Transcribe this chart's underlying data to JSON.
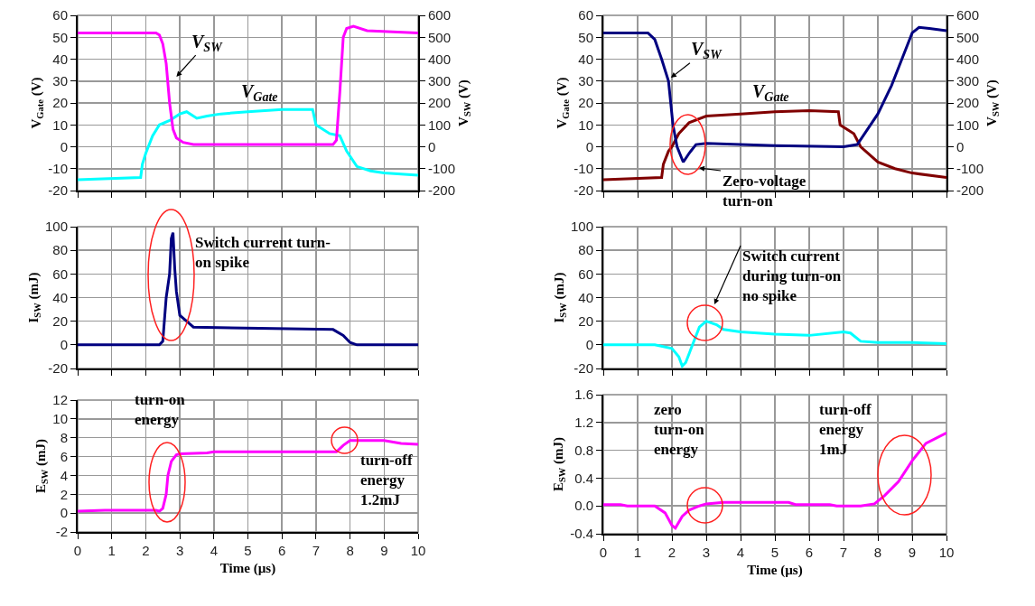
{
  "chart_data": [
    {
      "type": "line",
      "ylabel": "V$_{Gate}$ (V)",
      "y2label": "V$_{SW}$ (V)",
      "xlim": [
        0,
        10
      ],
      "xticks": [
        0,
        1,
        2,
        3,
        4,
        5,
        6,
        7,
        8,
        9,
        10
      ],
      "ylim": [
        -20,
        60
      ],
      "yticks": [
        -20,
        -10,
        0,
        10,
        20,
        30,
        40,
        50,
        60
      ],
      "y2lim": [
        -200,
        600
      ],
      "y2ticks": [
        -200,
        -100,
        0,
        100,
        200,
        300,
        400,
        500,
        600
      ],
      "grid": true,
      "tick_labels": "y",
      "marker": "none",
      "line_style": "solid",
      "series": [
        {
          "name": "V$_{SW}$",
          "color": "#ff00ff",
          "axis": "y2",
          "x": [
            0,
            2.3,
            2.4,
            2.5,
            2.6,
            2.7,
            2.8,
            2.9,
            3.1,
            3.4,
            7.5,
            7.6,
            7.7,
            7.8,
            7.9,
            8.1,
            8.5,
            10
          ],
          "values": [
            520,
            520,
            510,
            470,
            380,
            200,
            80,
            40,
            20,
            10,
            10,
            30,
            250,
            500,
            540,
            550,
            530,
            520
          ]
        },
        {
          "name": "V$_{Gate}$",
          "color": "#00ffff",
          "x": [
            0,
            1.85,
            1.9,
            2.0,
            2.2,
            2.4,
            2.7,
            3.0,
            3.2,
            3.5,
            3.8,
            4.2,
            5,
            6,
            6.9,
            7.0,
            7.4,
            7.7,
            7.9,
            8.2,
            8.6,
            9,
            10
          ],
          "values": [
            -15,
            -14,
            -8,
            -3,
            5,
            10,
            12,
            15,
            16,
            13,
            14,
            15,
            16,
            17,
            17,
            10,
            6,
            5,
            -2,
            -9,
            -11,
            -12,
            -13
          ]
        }
      ]
    },
    {
      "type": "line",
      "ylabel": "V$_{Gate}$ (V)",
      "y2label": "V$_{SW}$ (V)",
      "xlim": [
        0,
        10
      ],
      "xticks": [
        0,
        1,
        2,
        3,
        4,
        5,
        6,
        7,
        8,
        9,
        10
      ],
      "ylim": [
        -20,
        60
      ],
      "yticks": [
        -20,
        -10,
        0,
        10,
        20,
        30,
        40,
        50,
        60
      ],
      "y2lim": [
        -200,
        600
      ],
      "y2ticks": [
        -200,
        -100,
        0,
        100,
        200,
        300,
        400,
        500,
        600
      ],
      "grid": true,
      "tick_labels": "y",
      "marker": "none",
      "line_style": "solid",
      "annotations": [
        "Zero-voltage turn-on"
      ],
      "series": [
        {
          "name": "V$_{SW}$",
          "color": "#000080",
          "axis": "y2",
          "x": [
            0,
            1.3,
            1.5,
            1.7,
            1.9,
            2.03,
            2.15,
            2.33,
            2.5,
            2.7,
            3.0,
            5,
            7.0,
            7.4,
            7.7,
            8.0,
            8.4,
            8.7,
            9.0,
            9.2,
            9.5,
            10
          ],
          "values": [
            520,
            520,
            490,
            400,
            300,
            100,
            0,
            -70,
            -30,
            10,
            15,
            5,
            0,
            10,
            80,
            150,
            280,
            400,
            520,
            545,
            540,
            530
          ]
        },
        {
          "name": "V$_{Gate}$",
          "color": "#800000",
          "x": [
            0,
            1.7,
            1.75,
            1.9,
            2.0,
            2.2,
            2.5,
            3.0,
            4,
            5,
            6,
            6.85,
            6.9,
            7.3,
            7.5,
            8.0,
            8.5,
            9,
            10
          ],
          "values": [
            -15,
            -14,
            -8,
            -2,
            0,
            6,
            11,
            14,
            15,
            16,
            16.5,
            16,
            10,
            6,
            0,
            -7,
            -10,
            -12,
            -14
          ]
        }
      ]
    },
    {
      "type": "line",
      "ylabel": "I$_{SW}$ (mJ)",
      "xlim": [
        0,
        10
      ],
      "xticks": [
        0,
        1,
        2,
        3,
        4,
        5,
        6,
        7,
        8,
        9,
        10
      ],
      "ylim": [
        -20,
        100
      ],
      "yticks": [
        -20,
        0,
        20,
        40,
        60,
        80,
        100
      ],
      "grid": true,
      "tick_labels": "y",
      "marker": "none",
      "line_style": "solid",
      "annotations": [
        "Switch current turn-on spike"
      ],
      "series": [
        {
          "color": "#000080",
          "x": [
            0,
            2.4,
            2.5,
            2.6,
            2.7,
            2.75,
            2.8,
            2.85,
            2.9,
            3.0,
            3.2,
            3.4,
            7.5,
            7.8,
            8.0,
            8.2,
            10
          ],
          "values": [
            0,
            0,
            3,
            40,
            60,
            90,
            95,
            65,
            45,
            25,
            20,
            15,
            13,
            8,
            2,
            0,
            0
          ]
        }
      ]
    },
    {
      "type": "line",
      "ylabel": "I$_{SW}$ (mJ)",
      "xlim": [
        0,
        10
      ],
      "xticks": [
        0,
        1,
        2,
        3,
        4,
        5,
        6,
        7,
        8,
        9,
        10
      ],
      "ylim": [
        -20,
        100
      ],
      "yticks": [
        -20,
        0,
        20,
        40,
        60,
        80,
        100
      ],
      "grid": true,
      "tick_labels": "y",
      "marker": "none",
      "line_style": "solid",
      "annotations": [
        "Switch current during turn-on no spike"
      ],
      "series": [
        {
          "color": "#00ffff",
          "x": [
            0,
            1.5,
            2.0,
            2.2,
            2.3,
            2.4,
            2.6,
            2.8,
            3.0,
            3.3,
            3.5,
            4,
            5,
            6,
            7,
            7.2,
            7.5,
            8,
            9,
            10
          ],
          "values": [
            0,
            0,
            -3,
            -10,
            -18,
            -15,
            0,
            15,
            20,
            17,
            13,
            11,
            9,
            8,
            11,
            10,
            3,
            2,
            2,
            1
          ]
        }
      ]
    },
    {
      "type": "line",
      "xlabel": "Time (µs)",
      "ylabel": "E$_{SW}$ (mJ)",
      "xlim": [
        0,
        10
      ],
      "xticks": [
        0,
        1,
        2,
        3,
        4,
        5,
        6,
        7,
        8,
        9,
        10
      ],
      "ylim": [
        -2,
        12
      ],
      "yticks": [
        -2,
        0,
        2,
        4,
        6,
        8,
        10,
        12
      ],
      "grid": true,
      "marker": "none",
      "line_style": "solid",
      "annotations": [
        "turn-on energy",
        "turn-off energy 1.2mJ"
      ],
      "series": [
        {
          "color": "#ff00ff",
          "x": [
            0,
            0.8,
            2.3,
            2.4,
            2.5,
            2.6,
            2.65,
            2.75,
            2.9,
            3.0,
            3.8,
            4,
            7.6,
            7.8,
            8,
            9,
            9.5,
            10
          ],
          "values": [
            0.2,
            0.3,
            0.3,
            0.2,
            0.5,
            2,
            4,
            5.5,
            6.2,
            6.3,
            6.4,
            6.5,
            6.5,
            7.2,
            7.7,
            7.7,
            7.4,
            7.3
          ]
        }
      ]
    },
    {
      "type": "line",
      "xlabel": "Time (µs)",
      "ylabel": "E$_{SW}$ (mJ)",
      "xlim": [
        0,
        10
      ],
      "xticks": [
        0,
        1,
        2,
        3,
        4,
        5,
        6,
        7,
        8,
        9,
        10
      ],
      "ylim": [
        -0.4,
        1.6
      ],
      "yticks": [
        -0.4,
        {
          "value": 0,
          "label": "0.0"
        },
        0.4,
        0.8,
        1.2,
        1.6
      ],
      "grid": true,
      "marker": "none",
      "line_style": "solid",
      "annotations": [
        "zero turn-on energy",
        "turn-off energy 1mJ"
      ],
      "series": [
        {
          "color": "#ff00ff",
          "x": [
            0,
            0.5,
            0.7,
            1.5,
            1.8,
            2.0,
            2.1,
            2.3,
            2.5,
            2.8,
            3.0,
            3.5,
            5.4,
            5.6,
            6.6,
            6.8,
            7.5,
            7.9,
            8.2,
            8.6,
            9.0,
            9.4,
            10
          ],
          "values": [
            0.02,
            0.02,
            0,
            0,
            -0.1,
            -0.28,
            -0.32,
            -0.15,
            -0.06,
            0,
            0.03,
            0.05,
            0.05,
            0.02,
            0.02,
            0,
            0,
            0.03,
            0.15,
            0.35,
            0.65,
            0.9,
            1.05
          ]
        }
      ]
    }
  ]
}
